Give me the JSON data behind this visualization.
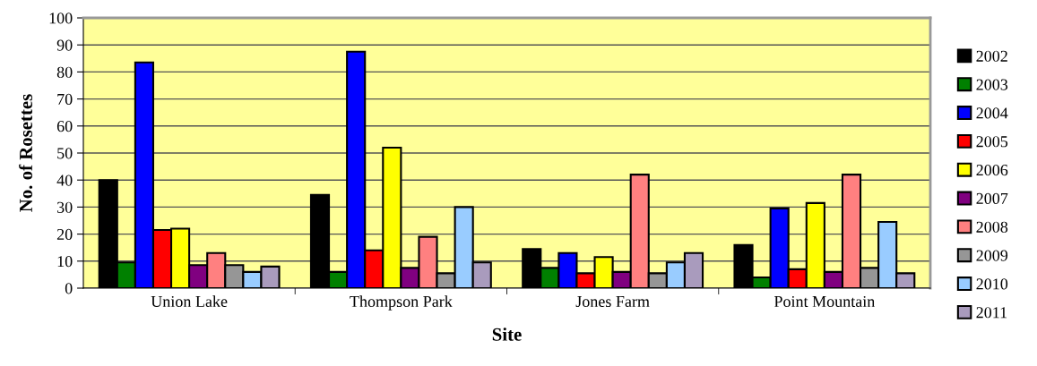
{
  "chart_data": {
    "type": "bar",
    "xlabel": "Site",
    "ylabel": "No. of Rosettes",
    "categories": [
      "Union Lake",
      "Thompson Park",
      "Jones Farm",
      "Point Mountain"
    ],
    "series": [
      {
        "name": "2002",
        "color": "#000000",
        "values": [
          40,
          34.5,
          14.5,
          16
        ]
      },
      {
        "name": "2003",
        "color": "#008000",
        "values": [
          9.5,
          6,
          7.5,
          4
        ]
      },
      {
        "name": "2004",
        "color": "#0000ff",
        "values": [
          83.5,
          87.5,
          13,
          29.5
        ]
      },
      {
        "name": "2005",
        "color": "#ff0000",
        "values": [
          21.5,
          14,
          5.5,
          7
        ]
      },
      {
        "name": "2006",
        "color": "#ffff00",
        "values": [
          22,
          52,
          11.5,
          31.5
        ]
      },
      {
        "name": "2007",
        "color": "#800080",
        "values": [
          8.5,
          7.5,
          6,
          6
        ]
      },
      {
        "name": "2008",
        "color": "#ff8080",
        "values": [
          13,
          19,
          42,
          42
        ]
      },
      {
        "name": "2009",
        "color": "#969696",
        "values": [
          8.5,
          5.5,
          5.5,
          7.5
        ]
      },
      {
        "name": "2010",
        "color": "#99ccff",
        "values": [
          6,
          30,
          9.5,
          24.5
        ]
      },
      {
        "name": "2011",
        "color": "#a99bbd",
        "values": [
          8,
          9.5,
          13,
          5.5
        ]
      }
    ],
    "ylim": [
      0,
      100
    ],
    "yticks": [
      0,
      10,
      20,
      30,
      40,
      50,
      60,
      70,
      80,
      90,
      100
    ],
    "grid": "y",
    "legend": "right"
  }
}
